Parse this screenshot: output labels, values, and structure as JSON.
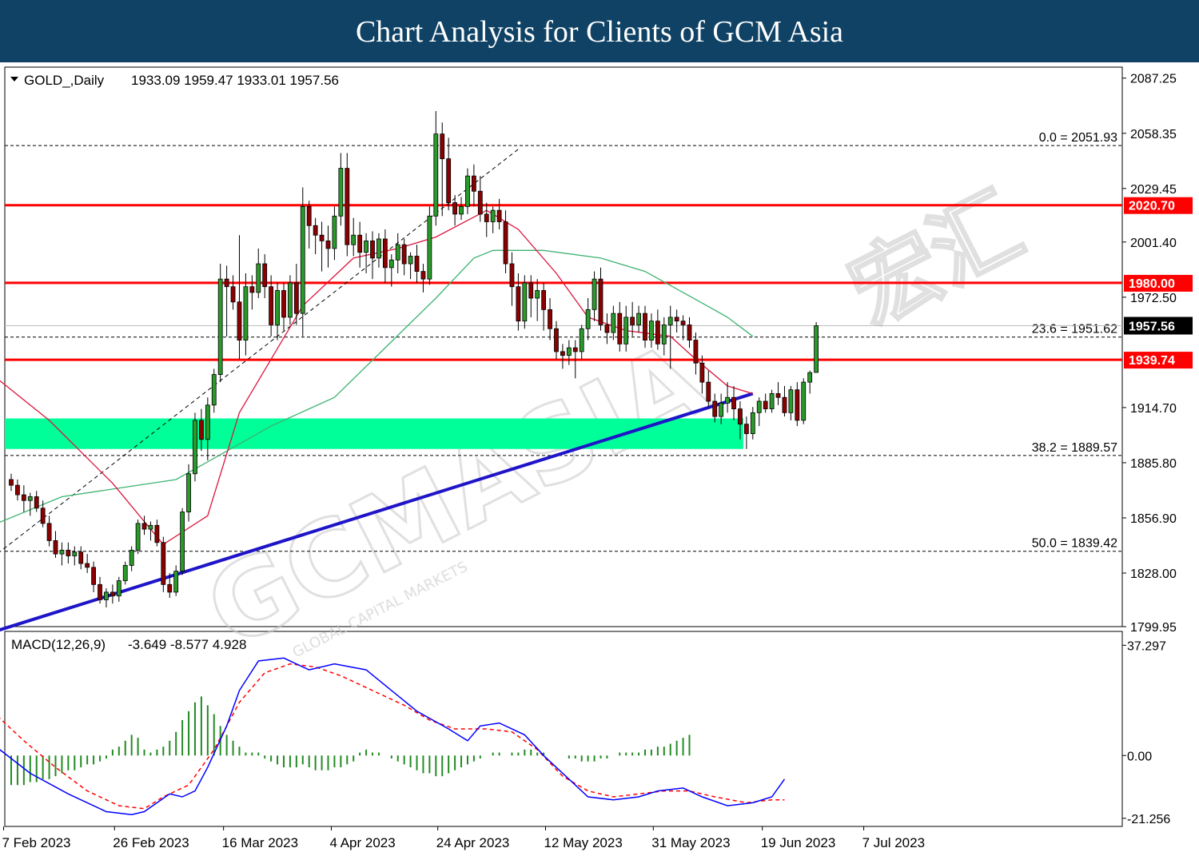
{
  "banner_title": "Chart Analysis for Clients of GCM Asia",
  "watermark": {
    "brand": "GCMASIA",
    "tagline": "GLOBAL CAPITAL MARKETS",
    "chinese": "宏汇"
  },
  "chart_data": {
    "type": "candlestick",
    "symbol": "GOLD_,Daily",
    "ohlc_header": "1933.09 1959.47 1933.01 1957.56",
    "current_price": 1957.56,
    "current_price_label": "1957.56",
    "colors": {
      "up": "#1a8a1a",
      "down": "#8b0000",
      "resistance": "#ff0000",
      "trendline": "#1e14c8",
      "zone": "#00ff99",
      "ma_fast": "#dc143c",
      "ma_slow": "#3cb371",
      "macd": "#0000ff",
      "signal": "#ff0000",
      "hist": "#228b22"
    },
    "price_axis": {
      "range": [
        1799.95,
        2093
      ],
      "ticks": [
        "2087.25",
        "2058.35",
        "2029.45",
        "2001.40",
        "1972.50",
        "1914.70",
        "1885.80",
        "1856.90",
        "1828.00",
        "1799.95"
      ]
    },
    "date_axis": [
      "7 Feb 2023",
      "26 Feb 2023",
      "16 Mar 2023",
      "4 Apr 2023",
      "24 Apr 2023",
      "12 May 2023",
      "31 May 2023",
      "19 Jun 2023",
      "7 Jul 2023"
    ],
    "horizontal_levels": [
      {
        "value": 2020.7,
        "label": "2020.70"
      },
      {
        "value": 1980.0,
        "label": "1980.00"
      },
      {
        "value": 1939.74,
        "label": "1939.74"
      }
    ],
    "fibonacci": [
      {
        "value": 2051.93,
        "label": "0.0 = 2051.93"
      },
      {
        "value": 1951.62,
        "label": "23.6 = 1951.62"
      },
      {
        "value": 1889.57,
        "label": "38.2 = 1889.57"
      },
      {
        "value": 1839.42,
        "label": "50.0 = 1839.42"
      }
    ],
    "support_zone": {
      "from": 1893,
      "to": 1909
    },
    "trendline": {
      "start": {
        "bar": -3,
        "price": 1797
      },
      "end": {
        "bar": 117,
        "price": 1922
      }
    },
    "channel_line": {
      "start": {
        "bar": -3,
        "price": 1836
      },
      "end": {
        "bar": 80,
        "price": 2050
      }
    },
    "candles": [
      [
        1877,
        1880,
        1871,
        1874
      ],
      [
        1874,
        1877,
        1866,
        1869
      ],
      [
        1869,
        1874,
        1860,
        1866
      ],
      [
        1866,
        1870,
        1858,
        1868
      ],
      [
        1868,
        1871,
        1860,
        1862
      ],
      [
        1862,
        1866,
        1852,
        1854
      ],
      [
        1854,
        1858,
        1842,
        1845
      ],
      [
        1845,
        1850,
        1836,
        1838
      ],
      [
        1838,
        1844,
        1832,
        1840
      ],
      [
        1840,
        1844,
        1833,
        1837
      ],
      [
        1837,
        1842,
        1832,
        1839
      ],
      [
        1839,
        1842,
        1830,
        1833
      ],
      [
        1833,
        1838,
        1828,
        1831
      ],
      [
        1831,
        1834,
        1818,
        1822
      ],
      [
        1822,
        1826,
        1812,
        1814
      ],
      [
        1814,
        1820,
        1810,
        1818
      ],
      [
        1818,
        1822,
        1812,
        1816
      ],
      [
        1816,
        1826,
        1813,
        1824
      ],
      [
        1824,
        1834,
        1822,
        1832
      ],
      [
        1832,
        1842,
        1829,
        1840
      ],
      [
        1840,
        1856,
        1838,
        1854
      ],
      [
        1854,
        1858,
        1848,
        1851
      ],
      [
        1851,
        1855,
        1845,
        1853
      ],
      [
        1853,
        1856,
        1842,
        1844
      ],
      [
        1844,
        1847,
        1818,
        1822
      ],
      [
        1822,
        1828,
        1815,
        1818
      ],
      [
        1818,
        1832,
        1816,
        1829
      ],
      [
        1829,
        1862,
        1827,
        1860
      ],
      [
        1860,
        1885,
        1855,
        1880
      ],
      [
        1880,
        1912,
        1876,
        1908
      ],
      [
        1908,
        1914,
        1892,
        1898
      ],
      [
        1898,
        1920,
        1887,
        1916
      ],
      [
        1916,
        1935,
        1912,
        1932
      ],
      [
        1932,
        1990,
        1928,
        1982
      ],
      [
        1982,
        1989,
        1952,
        1978
      ],
      [
        1978,
        1984,
        1966,
        1970
      ],
      [
        1970,
        2005,
        1940,
        1950
      ],
      [
        1950,
        1985,
        1942,
        1978
      ],
      [
        1978,
        1984,
        1966,
        1975
      ],
      [
        1975,
        1998,
        1972,
        1990
      ],
      [
        1990,
        1995,
        1972,
        1978
      ],
      [
        1978,
        1984,
        1952,
        1958
      ],
      [
        1958,
        1980,
        1950,
        1976
      ],
      [
        1976,
        1980,
        1955,
        1962
      ],
      [
        1962,
        1984,
        1958,
        1980
      ],
      [
        1980,
        1990,
        1958,
        1964
      ],
      [
        1964,
        2030,
        1952,
        2020
      ],
      [
        2020,
        2023,
        1998,
        2010
      ],
      [
        2010,
        2014,
        1995,
        2005
      ],
      [
        2005,
        2012,
        1986,
        2002
      ],
      [
        2002,
        2010,
        1988,
        1998
      ],
      [
        1998,
        2020,
        1992,
        2015
      ],
      [
        2015,
        2048,
        2010,
        2040
      ],
      [
        2040,
        2048,
        1994,
        2000
      ],
      [
        2000,
        2014,
        1994,
        2005
      ],
      [
        2005,
        2012,
        1988,
        1996
      ],
      [
        1996,
        2006,
        1985,
        2002
      ],
      [
        2002,
        2007,
        1982,
        1993
      ],
      [
        1993,
        2006,
        1988,
        2003
      ],
      [
        2003,
        2008,
        1980,
        1988
      ],
      [
        1988,
        1995,
        1978,
        1992
      ],
      [
        1992,
        2006,
        1985,
        2000
      ],
      [
        2000,
        2003,
        1984,
        1990
      ],
      [
        1990,
        1996,
        1982,
        1994
      ],
      [
        1994,
        2000,
        1980,
        1986
      ],
      [
        1986,
        1990,
        1975,
        1982
      ],
      [
        1982,
        2020,
        1979,
        2015
      ],
      [
        2015,
        2070,
        2010,
        2058
      ],
      [
        2058,
        2064,
        2015,
        2045
      ],
      [
        2045,
        2056,
        2018,
        2022
      ],
      [
        2022,
        2026,
        2010,
        2016
      ],
      [
        2016,
        2025,
        2013,
        2020
      ],
      [
        2020,
        2040,
        2016,
        2036
      ],
      [
        2036,
        2042,
        2020,
        2028
      ],
      [
        2028,
        2036,
        2012,
        2016
      ],
      [
        2016,
        2022,
        2004,
        2012
      ],
      [
        2012,
        2020,
        2006,
        2018
      ],
      [
        2018,
        2024,
        2008,
        2012
      ],
      [
        2012,
        2018,
        1985,
        1990
      ],
      [
        1990,
        1996,
        1968,
        1978
      ],
      [
        1978,
        1985,
        1955,
        1960
      ],
      [
        1960,
        1984,
        1956,
        1980
      ],
      [
        1980,
        1984,
        1962,
        1972
      ],
      [
        1972,
        1982,
        1960,
        1976
      ],
      [
        1976,
        1980,
        1955,
        1966
      ],
      [
        1966,
        1972,
        1950,
        1956
      ],
      [
        1956,
        1960,
        1940,
        1944
      ],
      [
        1944,
        1948,
        1935,
        1942
      ],
      [
        1942,
        1950,
        1937,
        1946
      ],
      [
        1946,
        1950,
        1930,
        1944
      ],
      [
        1944,
        1958,
        1940,
        1956
      ],
      [
        1956,
        1972,
        1950,
        1966
      ],
      [
        1966,
        1986,
        1960,
        1982
      ],
      [
        1982,
        1988,
        1955,
        1958
      ],
      [
        1958,
        1964,
        1948,
        1954
      ],
      [
        1954,
        1968,
        1950,
        1964
      ],
      [
        1964,
        1970,
        1944,
        1948
      ],
      [
        1948,
        1968,
        1944,
        1962
      ],
      [
        1962,
        1970,
        1952,
        1958
      ],
      [
        1958,
        1968,
        1954,
        1964
      ],
      [
        1964,
        1968,
        1946,
        1950
      ],
      [
        1950,
        1964,
        1946,
        1960
      ],
      [
        1960,
        1966,
        1945,
        1948
      ],
      [
        1948,
        1962,
        1942,
        1958
      ],
      [
        1958,
        1968,
        1935,
        1962
      ],
      [
        1962,
        1966,
        1954,
        1960
      ],
      [
        1960,
        1963,
        1950,
        1958
      ],
      [
        1958,
        1962,
        1946,
        1950
      ],
      [
        1950,
        1954,
        1932,
        1938
      ],
      [
        1938,
        1942,
        1922,
        1928
      ],
      [
        1928,
        1934,
        1915,
        1918
      ],
      [
        1918,
        1922,
        1907,
        1910
      ],
      [
        1910,
        1922,
        1906,
        1917
      ],
      [
        1917,
        1928,
        1912,
        1920
      ],
      [
        1920,
        1926,
        1908,
        1914
      ],
      [
        1914,
        1918,
        1898,
        1906
      ],
      [
        1906,
        1910,
        1893,
        1901
      ],
      [
        1901,
        1915,
        1898,
        1912
      ],
      [
        1912,
        1920,
        1905,
        1918
      ],
      [
        1918,
        1922,
        1912,
        1914
      ],
      [
        1914,
        1924,
        1912,
        1922
      ],
      [
        1922,
        1928,
        1916,
        1920
      ],
      [
        1920,
        1926,
        1910,
        1912
      ],
      [
        1912,
        1926,
        1908,
        1924
      ],
      [
        1924,
        1928,
        1905,
        1908
      ],
      [
        1908,
        1930,
        1906,
        1928
      ],
      [
        1928,
        1934,
        1922,
        1933
      ],
      [
        1933.09,
        1959.47,
        1933.01,
        1957.56
      ]
    ],
    "ma_fast": [
      [
        -3,
        1932
      ],
      [
        6,
        1908
      ],
      [
        16,
        1875
      ],
      [
        24,
        1843
      ],
      [
        31,
        1858
      ],
      [
        36,
        1912
      ],
      [
        46,
        1968
      ],
      [
        54,
        1993
      ],
      [
        61,
        1998
      ],
      [
        67,
        2004
      ],
      [
        75,
        2018
      ],
      [
        80,
        2008
      ],
      [
        86,
        1985
      ],
      [
        91,
        1962
      ],
      [
        97,
        1955
      ],
      [
        104,
        1952
      ],
      [
        108,
        1940
      ],
      [
        113,
        1926
      ],
      [
        117,
        1922
      ]
    ],
    "ma_slow": [
      [
        -3,
        1853
      ],
      [
        8,
        1868
      ],
      [
        18,
        1873
      ],
      [
        26,
        1877
      ],
      [
        33,
        1890
      ],
      [
        41,
        1905
      ],
      [
        51,
        1920
      ],
      [
        59,
        1946
      ],
      [
        67,
        1972
      ],
      [
        73,
        1993
      ],
      [
        76,
        1997
      ],
      [
        84,
        1997
      ],
      [
        93,
        1993
      ],
      [
        100,
        1986
      ],
      [
        106,
        1975
      ],
      [
        113,
        1962
      ],
      [
        117,
        1952
      ]
    ],
    "macd_panel": {
      "name": "MACD(12,26,9)",
      "values_text": "-3.649 -8.577 4.928",
      "range": [
        -24,
        42
      ],
      "ticks": [
        "37.297",
        "0.00",
        "-21.256"
      ],
      "macd_line": [
        [
          -3,
          4
        ],
        [
          3,
          -6
        ],
        [
          9,
          -13
        ],
        [
          15,
          -19
        ],
        [
          19,
          -20
        ],
        [
          21,
          -19
        ],
        [
          25,
          -13
        ],
        [
          27,
          -14
        ],
        [
          29,
          -12
        ],
        [
          31,
          -4
        ],
        [
          34,
          10
        ],
        [
          36,
          22
        ],
        [
          39,
          32
        ],
        [
          43,
          33
        ],
        [
          47,
          29
        ],
        [
          51,
          31
        ],
        [
          56,
          29
        ],
        [
          60,
          22
        ],
        [
          64,
          15
        ],
        [
          69,
          9
        ],
        [
          72,
          5
        ],
        [
          74,
          10
        ],
        [
          77,
          11
        ],
        [
          81,
          7
        ],
        [
          84,
          0
        ],
        [
          88,
          -8
        ],
        [
          91,
          -14
        ],
        [
          95,
          -15
        ],
        [
          99,
          -14
        ],
        [
          102,
          -12
        ],
        [
          106,
          -11
        ],
        [
          109,
          -14
        ],
        [
          113,
          -17
        ],
        [
          117,
          -16
        ],
        [
          120,
          -14
        ],
        [
          122,
          -8
        ]
      ],
      "signal_line": [
        [
          -3,
          15
        ],
        [
          2,
          5
        ],
        [
          7,
          -4
        ],
        [
          12,
          -12
        ],
        [
          17,
          -17
        ],
        [
          21,
          -18
        ],
        [
          24,
          -14
        ],
        [
          28,
          -10
        ],
        [
          32,
          2
        ],
        [
          36,
          18
        ],
        [
          40,
          28
        ],
        [
          44,
          31
        ],
        [
          48,
          30
        ],
        [
          52,
          27
        ],
        [
          57,
          22
        ],
        [
          62,
          17
        ],
        [
          66,
          12
        ],
        [
          70,
          9
        ],
        [
          75,
          9
        ],
        [
          79,
          8
        ],
        [
          83,
          2
        ],
        [
          87,
          -7
        ],
        [
          91,
          -12
        ],
        [
          95,
          -14
        ],
        [
          99,
          -13
        ],
        [
          103,
          -12
        ],
        [
          107,
          -12
        ],
        [
          111,
          -14
        ],
        [
          116,
          -16
        ],
        [
          120,
          -15
        ],
        [
          122,
          -15
        ]
      ],
      "histogram": [
        -10,
        -10,
        -10,
        -9,
        -9,
        -8,
        -8,
        -7,
        -6,
        -5,
        -5,
        -4,
        -3,
        -3,
        -2,
        -1,
        2,
        3,
        5,
        7,
        6,
        2,
        1,
        2,
        3,
        5,
        8,
        12,
        15,
        18,
        20,
        17,
        14,
        10,
        7,
        5,
        3,
        1,
        1,
        1,
        -1,
        -2,
        -3,
        -4,
        -4,
        -4,
        -3,
        -4,
        -5,
        -5,
        -5,
        -4,
        -4,
        -3,
        -2,
        1,
        2,
        1,
        1,
        0,
        -1,
        -2,
        -3,
        -4,
        -5,
        -6,
        -6,
        -7,
        -7,
        -6,
        -5,
        -4,
        -3,
        -2,
        -1,
        0,
        1,
        1,
        0,
        1,
        1,
        2,
        2,
        1,
        1,
        0,
        0,
        0,
        -1,
        -1,
        -2,
        -2,
        -2,
        -1,
        -1,
        0,
        1,
        1,
        1,
        1,
        2,
        2,
        3,
        3,
        4,
        5,
        6,
        7
      ]
    }
  }
}
